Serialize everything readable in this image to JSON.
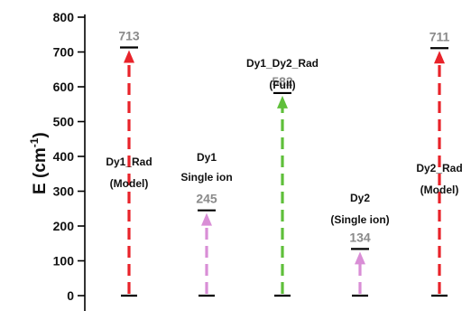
{
  "chart_data": {
    "type": "bar",
    "ylabel": "E (cm-1)",
    "ylabel_main": "E (cm",
    "ylabel_sup": "-1",
    "ylabel_end": ")",
    "ylim": [
      0,
      800
    ],
    "yticks": [
      "0",
      "100",
      "200",
      "300",
      "400",
      "500",
      "600",
      "700",
      "800"
    ],
    "grid": false,
    "levels": [
      {
        "value": 713,
        "value_label": "713",
        "color": "#e8232a",
        "annotation": [
          "Dy1_Rad",
          "(Model)"
        ]
      },
      {
        "value": 245,
        "value_label": "245",
        "color": "#d98ed6",
        "annotation": [
          "Dy1",
          "Single ion"
        ]
      },
      {
        "value": 582,
        "value_label": "582",
        "color": "#5fbf3a",
        "annotation": [
          "Dy1_Dy2_Rad",
          "(Full)"
        ]
      },
      {
        "value": 134,
        "value_label": "134",
        "color": "#d98ed6",
        "annotation": [
          "Dy2",
          "(Single ion)"
        ]
      },
      {
        "value": 711,
        "value_label": "711",
        "color": "#e8232a",
        "annotation": [
          "Dy2_Rad",
          "(Model)"
        ]
      }
    ]
  }
}
